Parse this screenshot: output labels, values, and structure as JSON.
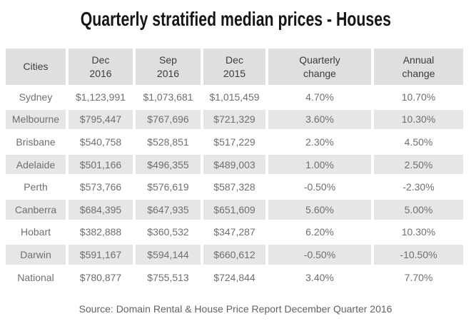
{
  "title": "Quarterly stratified median prices - Houses",
  "source": "Source: Domain Rental & House Price Report December Quarter 2016",
  "colors": {
    "header_bg": "#dfdfdf",
    "stripe_bg": "#e6e6e6",
    "title_text": "#151515",
    "header_text": "#3c3c3c",
    "body_text": "#6f6f6f",
    "source_text": "#636363",
    "canvas_bg": "#ffffff"
  },
  "header_display": [
    "Cities",
    "Dec\n2016",
    "Sep\n2016",
    "Dec\n2015",
    "Quarterly\nchange",
    "Annual\nchange"
  ],
  "chart_data": {
    "type": "table",
    "title": "Quarterly stratified median prices - Houses",
    "columns": [
      "Cities",
      "Dec 2016",
      "Sep 2016",
      "Dec 2015",
      "Quarterly change",
      "Annual change"
    ],
    "rows": [
      [
        "Sydney",
        "$1,123,991",
        "$1,073,681",
        "$1,015,459",
        "4.70%",
        "10.70%"
      ],
      [
        "Melbourne",
        "$795,447",
        "$767,696",
        "$721,329",
        "3.60%",
        "10.30%"
      ],
      [
        "Brisbane",
        "$540,758",
        "$528,851",
        "$517,229",
        "2.30%",
        "4.50%"
      ],
      [
        "Adelaide",
        "$501,166",
        "$496,355",
        "$489,003",
        "1.00%",
        "2.50%"
      ],
      [
        "Perth",
        "$573,766",
        "$576,619",
        "$587,328",
        "-0.50%",
        "-2.30%"
      ],
      [
        "Canberra",
        "$684,395",
        "$647,935",
        "$651,609",
        "5.60%",
        "5.00%"
      ],
      [
        "Hobart",
        "$382,888",
        "$360,532",
        "$347,287",
        "6.20%",
        "10.30%"
      ],
      [
        "Darwin",
        "$591,167",
        "$594,144",
        "$660,612",
        "-0.50%",
        "-10.50%"
      ],
      [
        "National",
        "$780,877",
        "$755,513",
        "$724,844",
        "3.40%",
        "7.70%"
      ]
    ],
    "source": "Source: Domain Rental & House Price Report December Quarter 2016",
    "layout": {
      "striped_rows": [
        "Melbourne",
        "Adelaide",
        "Canberra",
        "Darwin"
      ],
      "grid": false
    }
  }
}
